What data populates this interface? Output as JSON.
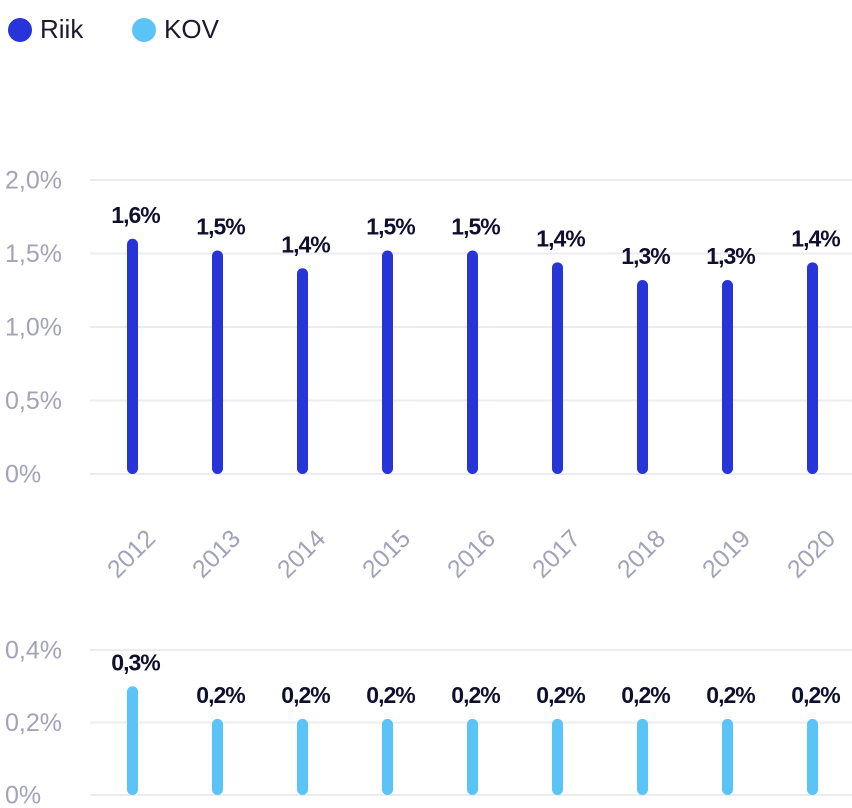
{
  "chart_data": [
    {
      "type": "bar",
      "categories": [
        "2012",
        "2013",
        "2014",
        "2015",
        "2016",
        "2017",
        "2018",
        "2019",
        "2020"
      ],
      "series": [
        {
          "name": "Riik",
          "color": "#2634d8",
          "values": [
            1.6,
            1.52,
            1.4,
            1.52,
            1.52,
            1.44,
            1.32,
            1.32,
            1.44
          ],
          "value_labels": [
            "1,6%",
            "1,5%",
            "1,4%",
            "1,5%",
            "1,5%",
            "1,4%",
            "1,3%",
            "1,3%",
            "1,4%"
          ]
        }
      ],
      "ylim": [
        0,
        2
      ],
      "yticks": [
        {
          "value": 0,
          "label": "0%"
        },
        {
          "value": 0.5,
          "label": "0,5%"
        },
        {
          "value": 1,
          "label": "1,0%"
        },
        {
          "value": 1.5,
          "label": "1,5%"
        },
        {
          "value": 2,
          "label": "2,0%"
        }
      ],
      "grid": true
    },
    {
      "type": "bar",
      "series": [
        {
          "name": "KOV",
          "color": "#5bc4f7",
          "values": [
            0.3,
            0.21,
            0.21,
            0.21,
            0.21,
            0.21,
            0.21,
            0.21,
            0.21
          ],
          "value_labels": [
            "0,3%",
            "0,2%",
            "0,2%",
            "0,2%",
            "0,2%",
            "0,2%",
            "0,2%",
            "0,2%",
            "0,2%"
          ]
        }
      ],
      "ylim": [
        0,
        0.4
      ],
      "yticks": [
        {
          "value": 0,
          "label": "0%"
        },
        {
          "value": 0.2,
          "label": "0,2%"
        },
        {
          "value": 0.4,
          "label": "0,4%"
        }
      ],
      "grid": true
    }
  ]
}
